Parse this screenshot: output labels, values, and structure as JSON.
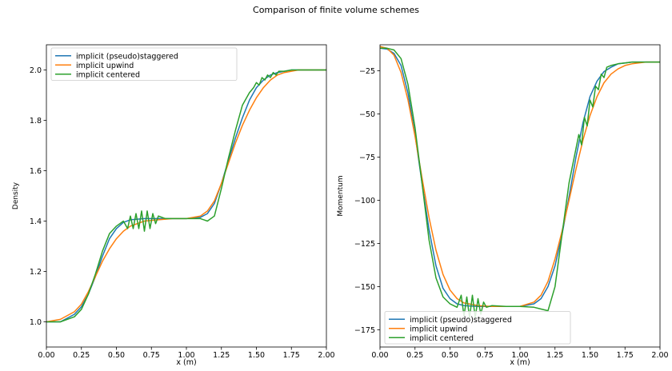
{
  "figure": {
    "suptitle": "Comparison of finite volume schemes"
  },
  "chart_data": [
    {
      "type": "line",
      "title": "",
      "xlabel": "x (m)",
      "ylabel": "Density",
      "xlim": [
        0.0,
        2.0
      ],
      "ylim": [
        0.9,
        2.1
      ],
      "x_ticks": [
        0.0,
        0.25,
        0.5,
        0.75,
        1.0,
        1.25,
        1.5,
        1.75,
        2.0
      ],
      "x_tick_labels": [
        "0.00",
        "0.25",
        "0.50",
        "0.75",
        "1.00",
        "1.25",
        "1.50",
        "1.75",
        "2.00"
      ],
      "y_ticks": [
        1.0,
        1.2,
        1.4,
        1.6,
        1.8,
        2.0
      ],
      "y_tick_labels": [
        "1.0",
        "1.2",
        "1.4",
        "1.6",
        "1.8",
        "2.0"
      ],
      "grid": false,
      "legend_position": "upper-left",
      "series": [
        {
          "name": "implicit (pseudo)staggered",
          "color": "#1f77b4",
          "x": [
            0.0,
            0.1,
            0.2,
            0.25,
            0.3,
            0.35,
            0.4,
            0.45,
            0.5,
            0.55,
            0.6,
            0.7,
            0.8,
            0.9,
            1.0,
            1.1,
            1.15,
            1.2,
            1.25,
            1.3,
            1.35,
            1.4,
            1.45,
            1.5,
            1.55,
            1.6,
            1.65,
            1.7,
            1.75,
            1.8,
            1.9,
            2.0
          ],
          "y": [
            1.0,
            1.0,
            1.03,
            1.06,
            1.11,
            1.18,
            1.26,
            1.33,
            1.37,
            1.395,
            1.405,
            1.41,
            1.41,
            1.41,
            1.41,
            1.415,
            1.43,
            1.47,
            1.55,
            1.64,
            1.73,
            1.81,
            1.88,
            1.93,
            1.96,
            1.98,
            1.99,
            1.995,
            2.0,
            2.0,
            2.0,
            2.0
          ]
        },
        {
          "name": "implicit upwind",
          "color": "#ff7f0e",
          "x": [
            0.0,
            0.1,
            0.2,
            0.25,
            0.3,
            0.35,
            0.4,
            0.45,
            0.5,
            0.55,
            0.6,
            0.7,
            0.8,
            0.9,
            1.0,
            1.1,
            1.15,
            1.2,
            1.25,
            1.3,
            1.35,
            1.4,
            1.45,
            1.5,
            1.55,
            1.6,
            1.65,
            1.7,
            1.75,
            1.8,
            1.9,
            2.0
          ],
          "y": [
            1.0,
            1.01,
            1.04,
            1.07,
            1.12,
            1.18,
            1.24,
            1.29,
            1.33,
            1.36,
            1.38,
            1.4,
            1.405,
            1.41,
            1.41,
            1.42,
            1.44,
            1.48,
            1.55,
            1.63,
            1.71,
            1.78,
            1.84,
            1.89,
            1.93,
            1.96,
            1.98,
            1.99,
            1.995,
            2.0,
            2.0,
            2.0
          ]
        },
        {
          "name": "implicit centered",
          "color": "#2ca02c",
          "x": [
            0.0,
            0.1,
            0.2,
            0.25,
            0.3,
            0.35,
            0.4,
            0.45,
            0.5,
            0.55,
            0.58,
            0.6,
            0.62,
            0.64,
            0.66,
            0.68,
            0.7,
            0.72,
            0.74,
            0.76,
            0.78,
            0.8,
            0.85,
            0.9,
            1.0,
            1.1,
            1.15,
            1.2,
            1.25,
            1.3,
            1.35,
            1.4,
            1.45,
            1.48,
            1.5,
            1.52,
            1.54,
            1.56,
            1.58,
            1.6,
            1.62,
            1.64,
            1.66,
            1.7,
            1.75,
            1.8,
            1.9,
            2.0
          ],
          "y": [
            1.0,
            1.0,
            1.02,
            1.05,
            1.11,
            1.19,
            1.28,
            1.35,
            1.38,
            1.4,
            1.37,
            1.42,
            1.37,
            1.43,
            1.37,
            1.44,
            1.36,
            1.44,
            1.37,
            1.43,
            1.39,
            1.42,
            1.41,
            1.41,
            1.41,
            1.41,
            1.4,
            1.42,
            1.53,
            1.65,
            1.76,
            1.86,
            1.91,
            1.93,
            1.95,
            1.94,
            1.97,
            1.96,
            1.98,
            1.97,
            1.99,
            1.98,
            1.995,
            1.995,
            2.0,
            2.0,
            2.0,
            2.0
          ]
        }
      ]
    },
    {
      "type": "line",
      "title": "",
      "xlabel": "x (m)",
      "ylabel": "Momentum",
      "xlim": [
        0.0,
        2.0
      ],
      "ylim": [
        -185,
        -10
      ],
      "x_ticks": [
        0.0,
        0.25,
        0.5,
        0.75,
        1.0,
        1.25,
        1.5,
        1.75,
        2.0
      ],
      "x_tick_labels": [
        "0.00",
        "0.25",
        "0.50",
        "0.75",
        "1.00",
        "1.25",
        "1.50",
        "1.75",
        "2.00"
      ],
      "y_ticks": [
        -25,
        -50,
        -75,
        -100,
        -125,
        -150,
        -175
      ],
      "y_tick_labels": [
        "−25",
        "−50",
        "−75",
        "−100",
        "−125",
        "−150",
        "−175"
      ],
      "grid": false,
      "legend_position": "lower-left",
      "series": [
        {
          "name": "implicit (pseudo)staggered",
          "color": "#1f77b4",
          "x": [
            0.0,
            0.05,
            0.1,
            0.15,
            0.2,
            0.25,
            0.3,
            0.35,
            0.4,
            0.45,
            0.5,
            0.55,
            0.6,
            0.7,
            0.8,
            0.9,
            1.0,
            1.1,
            1.15,
            1.2,
            1.25,
            1.3,
            1.35,
            1.4,
            1.45,
            1.5,
            1.55,
            1.6,
            1.65,
            1.7,
            1.75,
            1.8,
            1.9,
            2.0
          ],
          "y": [
            -12,
            -12.5,
            -15,
            -22,
            -38,
            -62,
            -90,
            -117,
            -138,
            -151,
            -157,
            -160,
            -161,
            -161.5,
            -161.5,
            -161.5,
            -161.5,
            -160,
            -157,
            -150,
            -138,
            -120,
            -98,
            -75,
            -55,
            -40,
            -31,
            -25.5,
            -23,
            -21,
            -20.5,
            -20,
            -20,
            -20
          ]
        },
        {
          "name": "implicit upwind",
          "color": "#ff7f0e",
          "x": [
            0.0,
            0.05,
            0.1,
            0.15,
            0.2,
            0.25,
            0.3,
            0.35,
            0.4,
            0.45,
            0.5,
            0.55,
            0.6,
            0.7,
            0.8,
            0.9,
            1.0,
            1.1,
            1.15,
            1.2,
            1.25,
            1.3,
            1.35,
            1.4,
            1.45,
            1.5,
            1.55,
            1.6,
            1.65,
            1.7,
            1.75,
            1.8,
            1.9,
            2.0
          ],
          "y": [
            -11,
            -12,
            -16,
            -26,
            -42,
            -63,
            -87,
            -110,
            -129,
            -143,
            -152,
            -157,
            -159.5,
            -161,
            -161.5,
            -161.5,
            -161.5,
            -159,
            -155,
            -147,
            -134,
            -118,
            -100,
            -82,
            -65,
            -51,
            -40,
            -32,
            -27,
            -24,
            -22,
            -21,
            -20,
            -20
          ]
        },
        {
          "name": "implicit centered",
          "color": "#2ca02c",
          "x": [
            0.0,
            0.05,
            0.1,
            0.15,
            0.2,
            0.25,
            0.3,
            0.35,
            0.4,
            0.45,
            0.5,
            0.55,
            0.58,
            0.6,
            0.62,
            0.64,
            0.66,
            0.68,
            0.7,
            0.72,
            0.74,
            0.76,
            0.8,
            0.9,
            1.0,
            1.1,
            1.15,
            1.2,
            1.25,
            1.3,
            1.35,
            1.4,
            1.42,
            1.44,
            1.46,
            1.48,
            1.5,
            1.52,
            1.54,
            1.56,
            1.58,
            1.6,
            1.62,
            1.65,
            1.7,
            1.75,
            1.8,
            1.9,
            2.0
          ],
          "y": [
            -12,
            -12,
            -13,
            -18,
            -33,
            -58,
            -90,
            -123,
            -145,
            -156,
            -160,
            -162,
            -155,
            -167,
            -156,
            -168,
            -155,
            -168,
            -157,
            -166,
            -159,
            -162,
            -161,
            -161.5,
            -161.5,
            -162,
            -163,
            -164,
            -150,
            -120,
            -90,
            -70,
            -62,
            -68,
            -52,
            -57,
            -42,
            -46,
            -34,
            -36,
            -27,
            -29,
            -23,
            -22,
            -21,
            -20.5,
            -20,
            -20,
            -20
          ]
        }
      ]
    }
  ]
}
